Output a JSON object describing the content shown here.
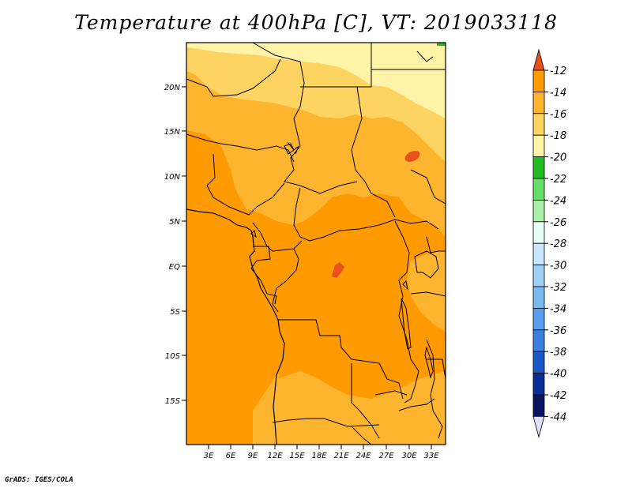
{
  "title": "Temperature at 400hPa [C], VT: 2019033118",
  "credit": "GrADS: IGES/COLA",
  "map": {
    "lat_labels": [
      "20N",
      "15N",
      "10N",
      "5N",
      "EQ",
      "5S",
      "10S",
      "15S"
    ],
    "lon_labels": [
      "3E",
      "6E",
      "9E",
      "12E",
      "15E",
      "18E",
      "21E",
      "24E",
      "27E",
      "30E",
      "33E"
    ]
  },
  "colorbar": {
    "levels": [
      "-12",
      "-14",
      "-16",
      "-18",
      "-20",
      "-22",
      "-24",
      "-26",
      "-28",
      "-30",
      "-32",
      "-34",
      "-36",
      "-38",
      "-40",
      "-42",
      "-44"
    ],
    "colors": [
      "#e8501c",
      "#ff9a00",
      "#fdb530",
      "#fdd462",
      "#fff3a8",
      "#22bb22",
      "#66dd66",
      "#aaf0aa",
      "#e6fff6",
      "#c8e6ff",
      "#a0d0f8",
      "#7abaf2",
      "#5a9ef0",
      "#3c7fe0",
      "#1a58c8",
      "#0b2e96",
      "#0a1460",
      "#e0e0f8"
    ]
  },
  "fills": {
    "c14": "#ff9a00",
    "c16": "#fdb530",
    "c18": "#fdd462",
    "c20": "#fff3a8",
    "c12": "#e8501c",
    "c24": "#22bb22"
  }
}
